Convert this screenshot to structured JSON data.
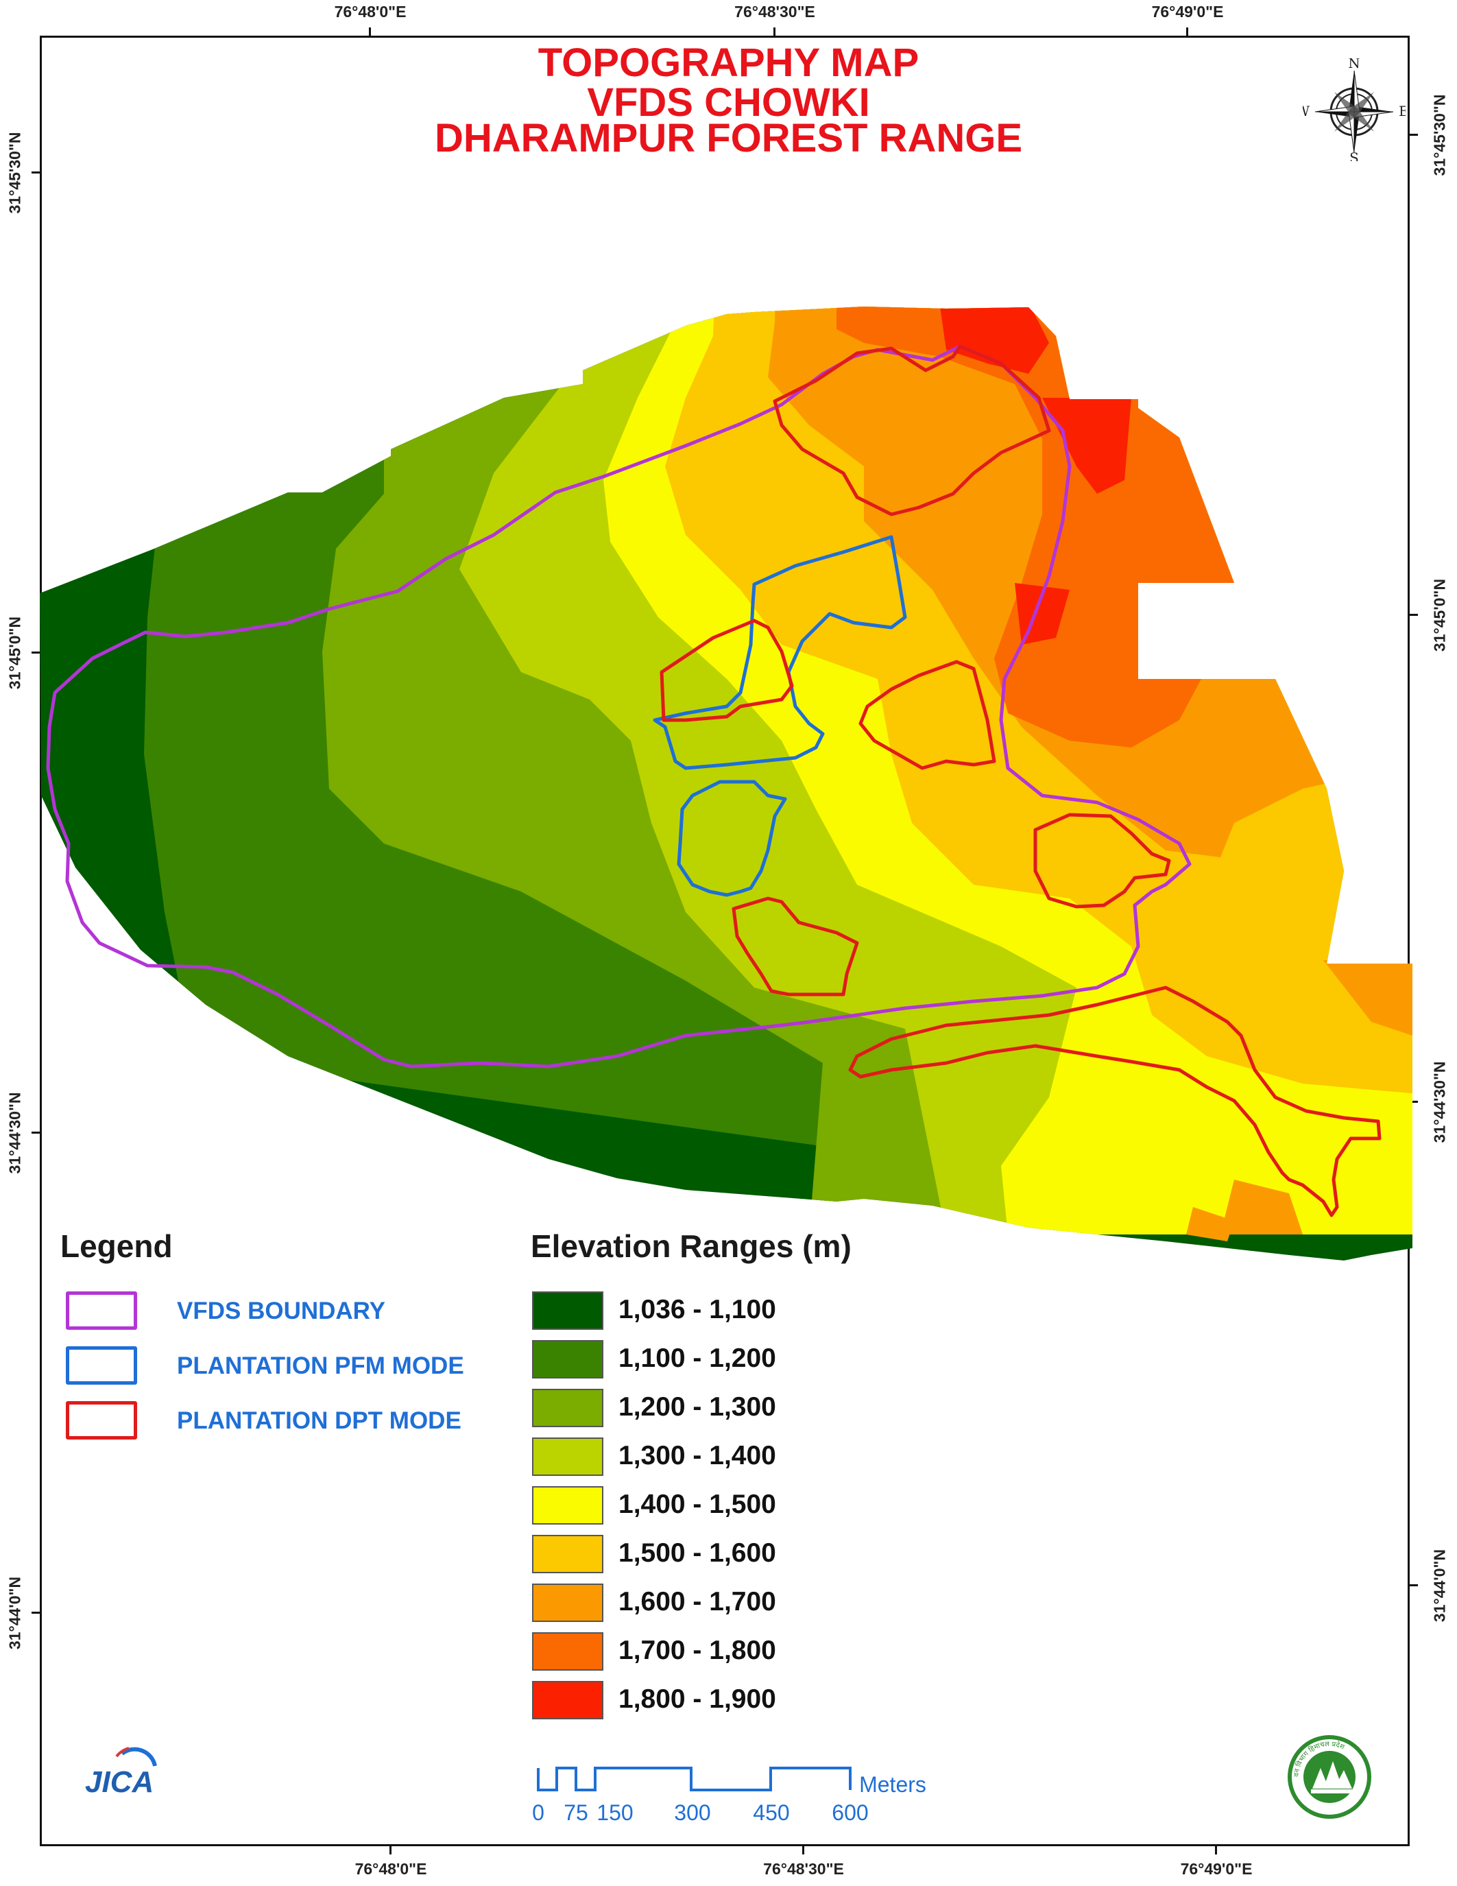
{
  "map": {
    "title_lines": [
      "TOPOGRAPHY MAP",
      "VFDS CHOWKI",
      "DHARAMPUR FOREST RANGE"
    ],
    "grid": {
      "top_labels": [
        "76°48'0\"E",
        "76°48'30\"E",
        "76°49'0\"E"
      ],
      "bottom_labels": [
        "76°48'0\"E",
        "76°48'30\"E",
        "76°49'0\"E"
      ],
      "left_labels": [
        "31°45'30\"N",
        "31°45'0\"N",
        "31°44'30\"N",
        "31°44'0\"N"
      ],
      "right_labels": [
        "31°45'30\"N",
        "31°45'0\"N",
        "31°44'30\"N",
        "31°44'0\"N"
      ]
    },
    "compass": {
      "n": "N",
      "s": "S",
      "e": "E",
      "w": "W"
    }
  },
  "legend": {
    "title": "Legend",
    "items": [
      {
        "label": "VFDS BOUNDARY",
        "color": "#b335d6"
      },
      {
        "label": "PLANTATION PFM MODE",
        "color": "#1f6fd6"
      },
      {
        "label": "PLANTATION DPT MODE",
        "color": "#e01b1b"
      }
    ]
  },
  "elevation": {
    "title": "Elevation Ranges (m)",
    "ranges": [
      {
        "label": "1,036 - 1,100",
        "color": "#005a00"
      },
      {
        "label": "1,100 - 1,200",
        "color": "#3a8300"
      },
      {
        "label": "1,200 - 1,300",
        "color": "#7bac00"
      },
      {
        "label": "1,300 - 1,400",
        "color": "#bbd400"
      },
      {
        "label": "1,400 - 1,500",
        "color": "#fbfb00"
      },
      {
        "label": "1,500 - 1,600",
        "color": "#fcc800"
      },
      {
        "label": "1,600 - 1,700",
        "color": "#fb9a00"
      },
      {
        "label": "1,700 - 1,800",
        "color": "#fb6a00"
      },
      {
        "label": "1,800 - 1,900",
        "color": "#fb2000"
      }
    ]
  },
  "scale_bar": {
    "ticks": [
      "0",
      "75",
      "150",
      "300",
      "450",
      "600"
    ],
    "unit": "Meters",
    "color": "#1f6fd6"
  },
  "logos": {
    "left": "JICA",
    "right_text": "वन विभाग हिमाचल प्रदेश"
  }
}
